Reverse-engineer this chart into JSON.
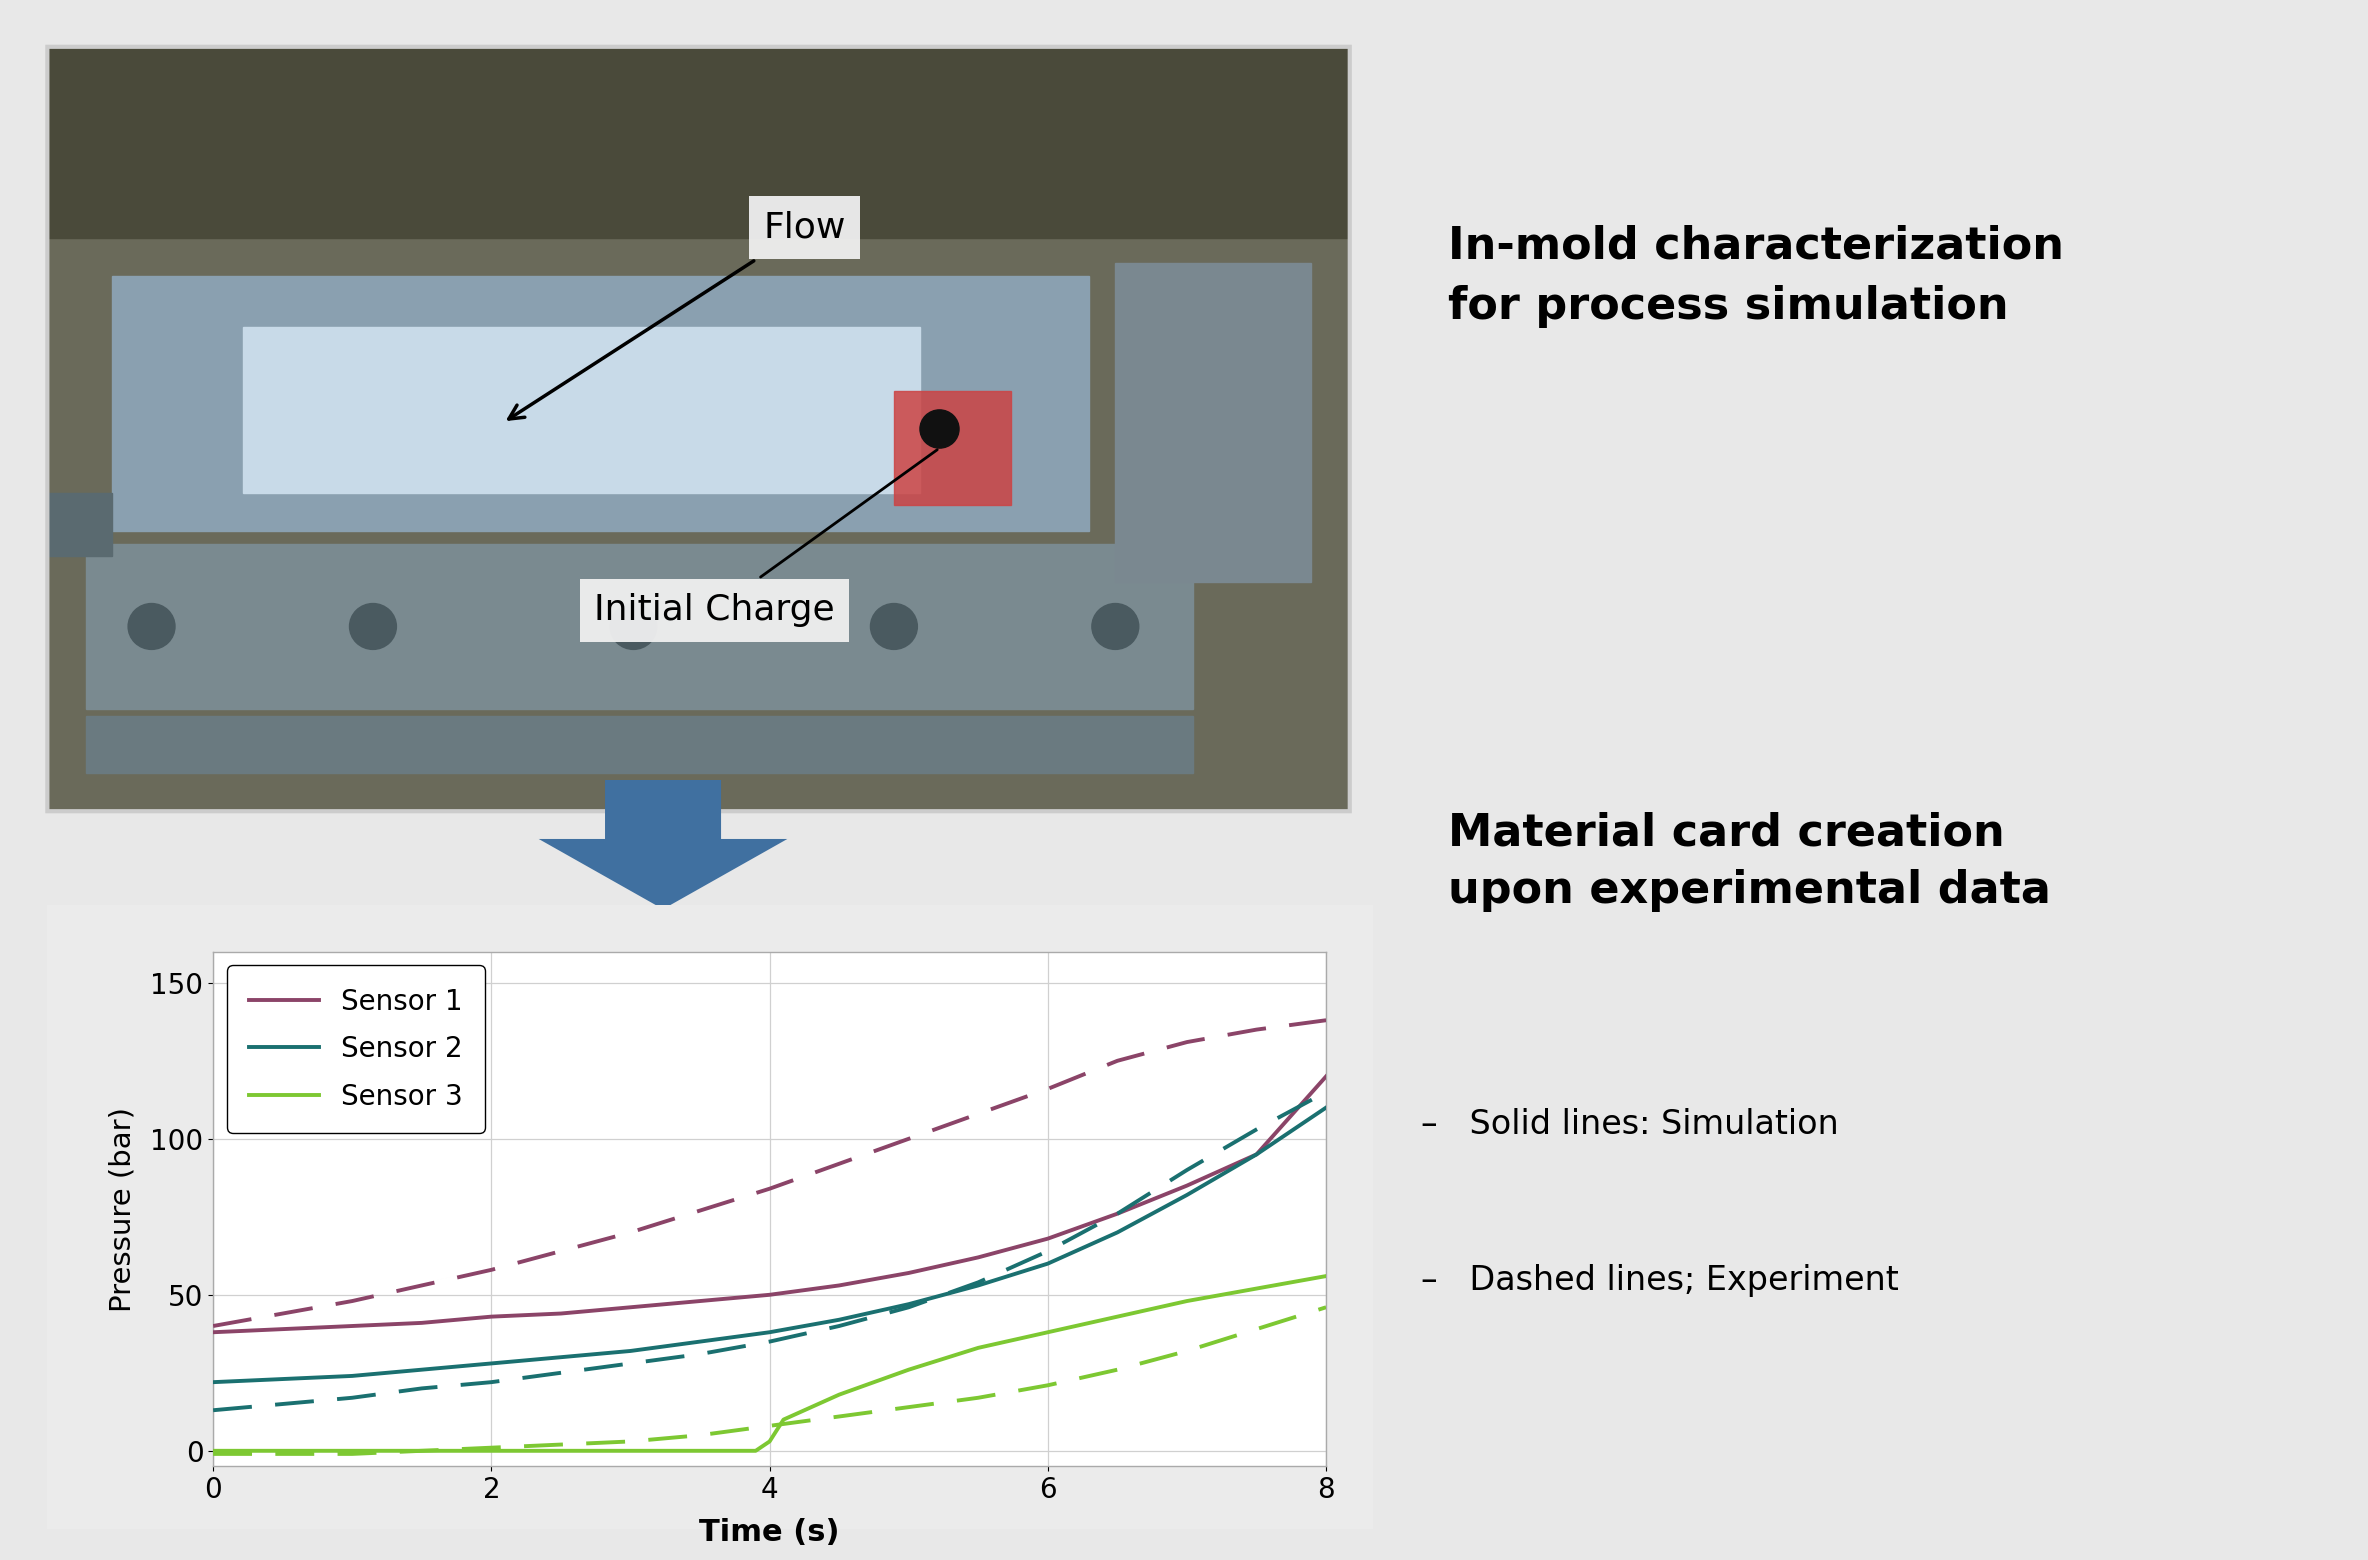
{
  "background_color": "#e8e8e8",
  "chart_bg_color": "#ffffff",
  "chart_outer_bg": "#ebebeb",
  "title_right_top": "In-mold characterization\nfor process simulation",
  "title_right_bottom": "Material card creation\nupon experimental data",
  "bullet1": "Solid lines: Simulation",
  "bullet2": "Dashed lines; Experiment",
  "sensor_colors": [
    "#8B4468",
    "#1A7070",
    "#7DC832"
  ],
  "sensor_labels": [
    "Sensor 1",
    "Sensor 2",
    "Sensor 3"
  ],
  "xlabel": "Time (s)",
  "ylabel": "Pressure (bar)",
  "xlim": [
    0,
    8
  ],
  "ylim": [
    -5,
    160
  ],
  "yticks": [
    0,
    50,
    100,
    150
  ],
  "xticks": [
    0,
    2,
    4,
    6,
    8
  ],
  "sensor1_sim_x": [
    0,
    0.5,
    1,
    1.5,
    2,
    2.5,
    3,
    3.5,
    4,
    4.5,
    5,
    5.5,
    6,
    6.5,
    7,
    7.5,
    8
  ],
  "sensor1_sim_y": [
    38,
    39,
    40,
    41,
    43,
    44,
    46,
    48,
    50,
    53,
    57,
    62,
    68,
    76,
    85,
    95,
    120
  ],
  "sensor1_exp_x": [
    0,
    0.5,
    1,
    1.5,
    2,
    2.5,
    3,
    3.5,
    4,
    4.5,
    5,
    5.5,
    6,
    6.5,
    7,
    7.5,
    8
  ],
  "sensor1_exp_y": [
    40,
    44,
    48,
    53,
    58,
    64,
    70,
    77,
    84,
    92,
    100,
    108,
    116,
    125,
    131,
    135,
    138
  ],
  "sensor2_sim_x": [
    0,
    0.5,
    1,
    1.5,
    2,
    2.5,
    3,
    3.5,
    4,
    4.5,
    5,
    5.5,
    6,
    6.5,
    7,
    7.5,
    8
  ],
  "sensor2_sim_y": [
    22,
    23,
    24,
    26,
    28,
    30,
    32,
    35,
    38,
    42,
    47,
    53,
    60,
    70,
    82,
    95,
    110
  ],
  "sensor2_exp_x": [
    0,
    0.5,
    1,
    1.5,
    2,
    2.5,
    3,
    3.5,
    4,
    4.5,
    5,
    5.5,
    6,
    6.5,
    7,
    7.5,
    8
  ],
  "sensor2_exp_y": [
    13,
    15,
    17,
    20,
    22,
    25,
    28,
    31,
    35,
    40,
    46,
    54,
    64,
    76,
    90,
    103,
    115
  ],
  "sensor3_sim_x": [
    0,
    0.5,
    1,
    1.5,
    2,
    2.5,
    3,
    3.5,
    3.9,
    4.0,
    4.1,
    4.5,
    5,
    5.5,
    6,
    6.5,
    7,
    7.5,
    8
  ],
  "sensor3_sim_y": [
    0,
    0,
    0,
    0,
    0,
    0,
    0,
    0,
    0,
    3,
    10,
    18,
    26,
    33,
    38,
    43,
    48,
    52,
    56
  ],
  "sensor3_exp_x": [
    0,
    0.5,
    1,
    1.5,
    2,
    2.5,
    3,
    3.5,
    4,
    4.5,
    5,
    5.5,
    6,
    6.5,
    7,
    7.5,
    8
  ],
  "sensor3_exp_y": [
    -1,
    -1,
    -1,
    0,
    1,
    2,
    3,
    5,
    8,
    11,
    14,
    17,
    21,
    26,
    32,
    39,
    46
  ],
  "arrow_color": "#4070A0",
  "flow_label": "Flow",
  "charge_label": "Initial Charge",
  "photo_bg": "#8a8a7a",
  "photo_mid": "#9a9a8a",
  "photo_light": "#b8c8d8"
}
